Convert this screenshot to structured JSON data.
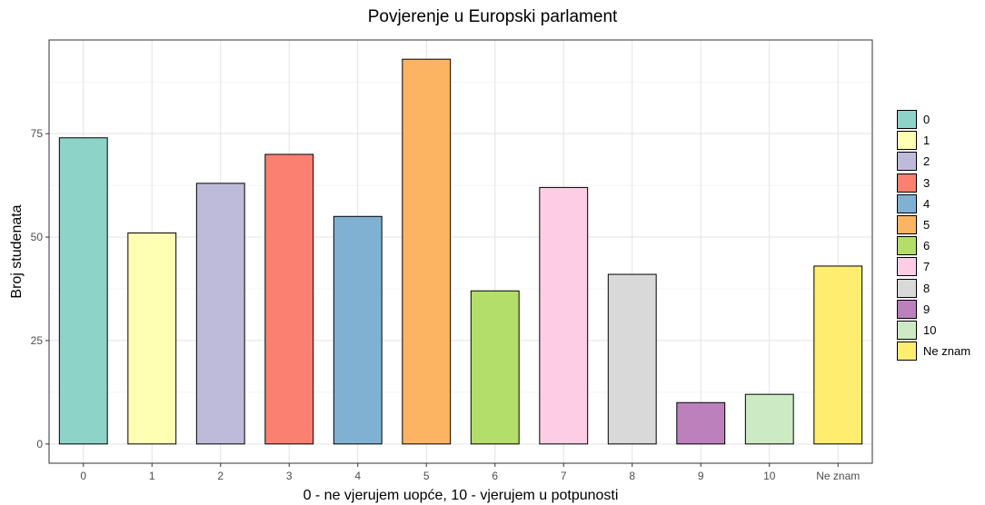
{
  "chart_data": {
    "type": "bar",
    "title": "Povjerenje u Europski parlament",
    "xlabel": "0 - ne vjerujem uopće, 10 - vjerujem u potpunosti",
    "ylabel": "Broj studenata",
    "categories": [
      "0",
      "1",
      "2",
      "3",
      "4",
      "5",
      "6",
      "7",
      "8",
      "9",
      "10",
      "Ne znam"
    ],
    "values": [
      74,
      51,
      63,
      70,
      55,
      93,
      37,
      62,
      41,
      10,
      12,
      43
    ],
    "colors": [
      "#8DD3C7",
      "#FFFFB3",
      "#BEBADA",
      "#FB8072",
      "#80B1D3",
      "#FDB462",
      "#B3DE69",
      "#FCCDE5",
      "#D9D9D9",
      "#BC80BD",
      "#CCEBC5",
      "#FFED6F"
    ],
    "yticks": [
      0,
      25,
      50,
      75
    ],
    "ylim": [
      -4.65,
      97.65
    ],
    "grid": true,
    "legend": {
      "position": "right",
      "entries": [
        "0",
        "1",
        "2",
        "3",
        "4",
        "5",
        "6",
        "7",
        "8",
        "9",
        "10",
        "Ne znam"
      ]
    }
  }
}
